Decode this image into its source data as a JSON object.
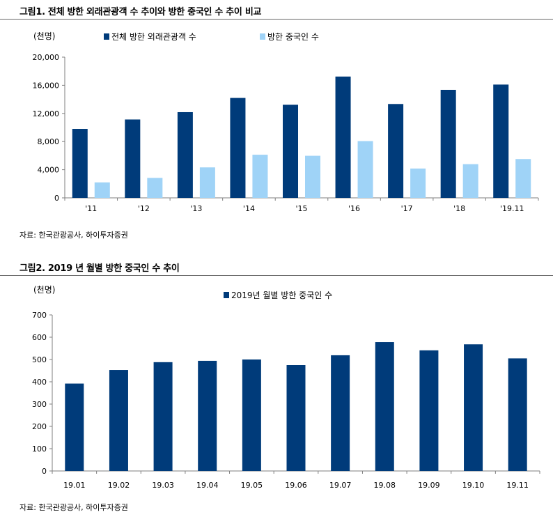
{
  "colors": {
    "dark": "#003b7a",
    "light": "#9fd3f7",
    "axis": "#7f7f7f",
    "grid": "#d9d9d9"
  },
  "figure1": {
    "title": "그림1.  전체 방한 외래관광객 수 추이와 방한 중국인 수 추이 비교",
    "source": "자료: 한국관광공사, 하이투자증권",
    "chart_data": {
      "type": "bar",
      "unit": "(천명)",
      "categories": [
        "'11",
        "'12",
        "'13",
        "'14",
        "'15",
        "'16",
        "'17",
        "'18",
        "'19.11"
      ],
      "series": [
        {
          "name": "전체 방한 외래관광객 수",
          "color": "#003b7a",
          "values": [
            9800,
            11140,
            12180,
            14200,
            13230,
            17240,
            13340,
            15350,
            16100
          ]
        },
        {
          "name": "방한 중국인 수",
          "color": "#9fd3f7",
          "values": [
            2200,
            2840,
            4330,
            6130,
            5980,
            8070,
            4170,
            4790,
            5520
          ]
        }
      ],
      "yticks": [
        "0",
        "4,000",
        "8,000",
        "12,000",
        "16,000",
        "20,000"
      ],
      "ylim": [
        0,
        20000
      ],
      "legend": "top"
    }
  },
  "figure2": {
    "title": "그림2.  2019 년 월별 방한 중국인 수 추이",
    "source": "자료: 한국관광공사, 하이투자증권",
    "chart_data": {
      "type": "bar",
      "unit": "(천명)",
      "categories": [
        "19.01",
        "19.02",
        "19.03",
        "19.04",
        "19.05",
        "19.06",
        "19.07",
        "19.08",
        "19.09",
        "19.10",
        "19.11"
      ],
      "series": [
        {
          "name": "2019년 월별 방한 중국인 수",
          "color": "#003b7a",
          "values": [
            392,
            453,
            488,
            494,
            500,
            475,
            519,
            578,
            541,
            568,
            505
          ]
        }
      ],
      "yticks": [
        "0",
        "100",
        "200",
        "300",
        "400",
        "500",
        "600",
        "700"
      ],
      "ylim": [
        0,
        700
      ],
      "legend": "top"
    }
  }
}
